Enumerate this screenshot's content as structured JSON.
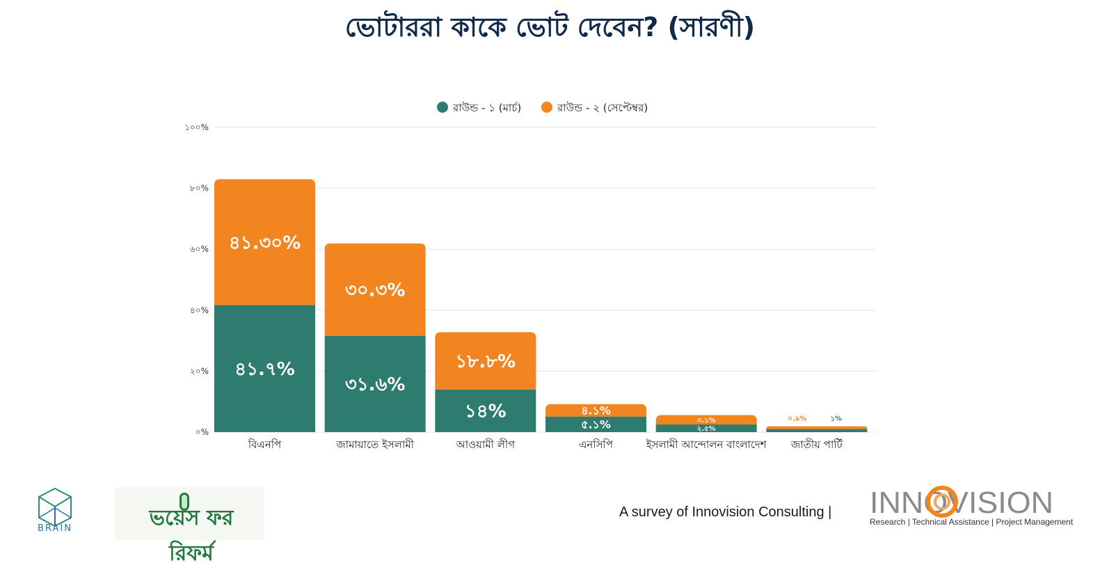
{
  "title": "ভোটাররা কাকে ভোট দেবেন? (সারণী)",
  "chart_data": {
    "type": "bar",
    "stacked": true,
    "categories": [
      "বিএনপি",
      "জামায়াতে ইসলামী",
      "আওয়ামী লীগ",
      "এনসিপি",
      "ইসলামী আন্দোলন বাংলাদেশ",
      "জাতীয় পার্টি"
    ],
    "series": [
      {
        "name": "রাউন্ড - ১ (মার্চ)",
        "color": "#2e7b6f",
        "values": [
          41.7,
          31.6,
          14,
          5.1,
          2.5,
          1
        ],
        "labels": [
          "৪১.৭%",
          "৩১.৬%",
          "১৪%",
          "৫.১%",
          "২.৫%",
          "১%"
        ]
      },
      {
        "name": "রাউন্ড - ২ (সেপ্টেম্বর)",
        "color": "#f28520",
        "values": [
          41.3,
          30.3,
          18.8,
          4.1,
          3.1,
          0.9
        ],
        "labels": [
          "৪১.৩০%",
          "৩০.৩%",
          "১৮.৮%",
          "৪.১%",
          "৩.১%",
          "০.৯%"
        ]
      }
    ],
    "y_ticks": [
      0,
      20,
      40,
      60,
      80,
      100
    ],
    "y_tick_labels": [
      "০%",
      "২০%",
      "৪০%",
      "৬০%",
      "৮০%",
      "১০০%"
    ],
    "ylim": [
      0,
      100
    ],
    "grid": true,
    "legend_position": "top-center"
  },
  "footer": {
    "brain_label": "BRAIN",
    "voice_for_reform": "ভয়েস ফর রিফর্ম",
    "survey_text": "A survey of Innovision Consulting |",
    "innovision_name": "INNOVISION",
    "innovision_tagline": "Research | Technical Assistance | Project Management"
  }
}
